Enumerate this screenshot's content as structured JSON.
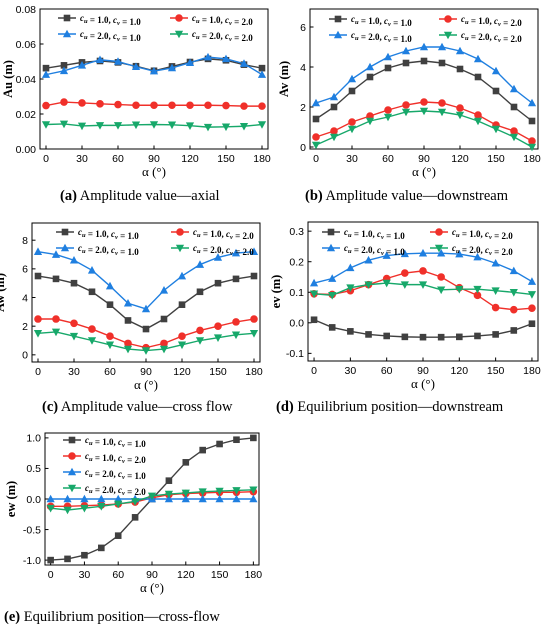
{
  "figure": {
    "captions": [
      {
        "label": "(a)",
        "text": " Amplitude value—axial"
      },
      {
        "label": "(b)",
        "text": " Amplitude value—downstream"
      },
      {
        "label": "(c)",
        "text": " Amplitude value—cross flow"
      },
      {
        "label": "(d)",
        "text": " Equilibrium position—downstream"
      },
      {
        "label": "(e)",
        "text": " Equilibrium position—cross-flow"
      }
    ]
  },
  "series_styles": [
    {
      "color": "#404040",
      "marker": "square"
    },
    {
      "color": "#f0302a",
      "marker": "circle"
    },
    {
      "color": "#1f7fe0",
      "marker": "triangle-up"
    },
    {
      "color": "#17a86a",
      "marker": "triangle-down"
    }
  ],
  "chart_data": [
    {
      "type": "line",
      "xlabel": "α (°)",
      "ylabel": "Au (m)",
      "x": [
        0,
        15,
        30,
        45,
        60,
        75,
        90,
        105,
        120,
        135,
        150,
        165,
        180
      ],
      "xticks": [
        0,
        30,
        60,
        90,
        120,
        150,
        180
      ],
      "yticks": [
        "0.00",
        "0.02",
        "0.04",
        "0.06",
        "0.08"
      ],
      "xlim": [
        -5,
        185
      ],
      "ylim": [
        0,
        0.08
      ],
      "legend": "top",
      "legend_columns": 2,
      "series": [
        {
          "name": "c_u = 1.0,  c_v = 1.0",
          "values": [
            0.0462,
            0.0478,
            0.0495,
            0.0503,
            0.0495,
            0.0473,
            0.0447,
            0.0472,
            0.0497,
            0.0515,
            0.0507,
            0.0482,
            0.0462
          ]
        },
        {
          "name": "c_u = 1.0,  c_v = 2.0",
          "values": [
            0.0248,
            0.0268,
            0.0263,
            0.0258,
            0.0254,
            0.025,
            0.025,
            0.025,
            0.025,
            0.025,
            0.0248,
            0.0245,
            0.0245
          ]
        },
        {
          "name": "c_u = 2.0,  c_v = 1.0",
          "values": [
            0.0425,
            0.0447,
            0.0478,
            0.051,
            0.05,
            0.047,
            0.0445,
            0.0463,
            0.0493,
            0.0525,
            0.0515,
            0.0488,
            0.0425
          ]
        },
        {
          "name": "c_u = 2.0,  c_v = 2.0",
          "values": [
            0.014,
            0.0143,
            0.0132,
            0.0135,
            0.0135,
            0.0138,
            0.014,
            0.0138,
            0.0133,
            0.0125,
            0.0127,
            0.013,
            0.014
          ]
        }
      ]
    },
    {
      "type": "line",
      "xlabel": "α (°)",
      "ylabel": "Av (m)",
      "x": [
        0,
        15,
        30,
        45,
        60,
        75,
        90,
        105,
        120,
        135,
        150,
        165,
        180
      ],
      "xticks": [
        0,
        30,
        60,
        90,
        120,
        150,
        180
      ],
      "yticks": [
        "0",
        "2",
        "4",
        "6"
      ],
      "xlim": [
        -5,
        185
      ],
      "ylim": [
        -0.1,
        6.9
      ],
      "legend": "top",
      "legend_columns": 2,
      "series": [
        {
          "name": "c_u = 1.0,  c_v = 1.0",
          "values": [
            1.4,
            2.0,
            2.8,
            3.5,
            3.95,
            4.2,
            4.3,
            4.2,
            3.9,
            3.5,
            2.8,
            2.0,
            1.3
          ]
        },
        {
          "name": "c_u = 1.0,  c_v = 2.0",
          "values": [
            0.5,
            0.8,
            1.25,
            1.55,
            1.85,
            2.1,
            2.25,
            2.2,
            1.95,
            1.6,
            1.1,
            0.8,
            0.3
          ]
        },
        {
          "name": "c_u = 2.0,  c_v = 1.0",
          "values": [
            2.2,
            2.5,
            3.4,
            4.0,
            4.5,
            4.8,
            5.0,
            5.0,
            4.8,
            4.4,
            3.8,
            2.9,
            2.2
          ]
        },
        {
          "name": "c_u = 2.0,  c_v = 2.0",
          "values": [
            0.1,
            0.5,
            0.9,
            1.3,
            1.5,
            1.75,
            1.8,
            1.75,
            1.6,
            1.3,
            0.9,
            0.5,
            0.0
          ]
        }
      ]
    },
    {
      "type": "line",
      "xlabel": "α (°)",
      "ylabel": "Aw (m)",
      "x": [
        0,
        15,
        30,
        45,
        60,
        75,
        90,
        105,
        120,
        135,
        150,
        165,
        180
      ],
      "xticks": [
        0,
        30,
        60,
        90,
        120,
        150,
        180
      ],
      "yticks": [
        "0",
        "2",
        "4",
        "6",
        "8"
      ],
      "xlim": [
        -5,
        185
      ],
      "ylim": [
        -0.5,
        9.2
      ],
      "legend": "top",
      "legend_columns": 2,
      "series": [
        {
          "name": "c_u = 1.0,  c_v = 1.0",
          "values": [
            5.5,
            5.3,
            5.0,
            4.4,
            3.5,
            2.4,
            1.8,
            2.5,
            3.5,
            4.4,
            5.0,
            5.3,
            5.5
          ]
        },
        {
          "name": "c_u = 1.0,  c_v = 2.0",
          "values": [
            2.5,
            2.5,
            2.2,
            1.8,
            1.3,
            0.8,
            0.5,
            0.8,
            1.3,
            1.7,
            2.0,
            2.3,
            2.5
          ]
        },
        {
          "name": "c_u = 2.0,  c_v = 1.0",
          "values": [
            7.2,
            7.0,
            6.6,
            5.9,
            4.8,
            3.6,
            3.2,
            4.5,
            5.5,
            6.3,
            6.8,
            7.1,
            7.2
          ]
        },
        {
          "name": "c_u = 2.0,  c_v = 2.0",
          "values": [
            1.5,
            1.6,
            1.3,
            1.0,
            0.7,
            0.4,
            0.3,
            0.4,
            0.7,
            1.0,
            1.2,
            1.4,
            1.5
          ]
        }
      ]
    },
    {
      "type": "line",
      "xlabel": "α (°)",
      "ylabel": "ev (m)",
      "x": [
        0,
        15,
        30,
        45,
        60,
        75,
        90,
        105,
        120,
        135,
        150,
        165,
        180
      ],
      "xticks": [
        0,
        30,
        60,
        90,
        120,
        150,
        180
      ],
      "yticks": [
        "-0.1",
        "0.0",
        "0.1",
        "0.2",
        "0.3"
      ],
      "xlim": [
        -5,
        185
      ],
      "ylim": [
        -0.125,
        0.33
      ],
      "legend": "top",
      "legend_columns": 2,
      "series": [
        {
          "name": "c_u = 1.0,  c_v = 1.0",
          "values": [
            0.01,
            -0.015,
            -0.028,
            -0.038,
            -0.043,
            -0.046,
            -0.047,
            -0.047,
            -0.046,
            -0.043,
            -0.038,
            -0.025,
            -0.003
          ]
        },
        {
          "name": "c_u = 1.0,  c_v = 2.0",
          "values": [
            0.095,
            0.093,
            0.105,
            0.125,
            0.145,
            0.163,
            0.17,
            0.15,
            0.115,
            0.09,
            0.05,
            0.043,
            0.048
          ]
        },
        {
          "name": "c_u = 2.0,  c_v = 1.0",
          "values": [
            0.13,
            0.145,
            0.18,
            0.205,
            0.22,
            0.226,
            0.228,
            0.228,
            0.225,
            0.215,
            0.195,
            0.17,
            0.135
          ]
        },
        {
          "name": "c_u = 2.0,  c_v = 2.0",
          "values": [
            0.095,
            0.09,
            0.115,
            0.125,
            0.13,
            0.125,
            0.125,
            0.108,
            0.11,
            0.11,
            0.105,
            0.1,
            0.093
          ]
        }
      ]
    },
    {
      "type": "line",
      "xlabel": "α (°)",
      "ylabel": "ew (m)",
      "x": [
        0,
        15,
        30,
        45,
        60,
        75,
        90,
        105,
        120,
        135,
        150,
        165,
        180
      ],
      "xticks": [
        0,
        30,
        60,
        90,
        120,
        150,
        180
      ],
      "yticks": [
        "-1.0",
        "-0.5",
        "0.0",
        "0.5",
        "1.0"
      ],
      "xlim": [
        -5,
        185
      ],
      "ylim": [
        -1.08,
        1.08
      ],
      "legend": "middle-left",
      "legend_columns": 1,
      "series": [
        {
          "name": "c_u = 1.0,  c_v = 1.0",
          "values": [
            -1.0,
            -0.98,
            -0.92,
            -0.8,
            -0.6,
            -0.3,
            0.0,
            0.3,
            0.6,
            0.8,
            0.9,
            0.97,
            1.0
          ]
        },
        {
          "name": "c_u = 1.0,  c_v = 2.0",
          "values": [
            -0.12,
            -0.12,
            -0.11,
            -0.1,
            -0.08,
            -0.05,
            0.02,
            0.07,
            0.09,
            0.1,
            0.11,
            0.11,
            0.12
          ]
        },
        {
          "name": "c_u = 2.0,  c_v = 1.0",
          "values": [
            0.0,
            0.0,
            0.0,
            0.0,
            0.0,
            0.0,
            0.0,
            0.0,
            0.0,
            0.0,
            0.0,
            0.0,
            0.0
          ]
        },
        {
          "name": "c_u = 2.0,  c_v = 2.0",
          "values": [
            -0.15,
            -0.18,
            -0.15,
            -0.12,
            -0.08,
            -0.04,
            0.05,
            0.08,
            0.1,
            0.12,
            0.13,
            0.14,
            0.15
          ]
        }
      ]
    }
  ]
}
